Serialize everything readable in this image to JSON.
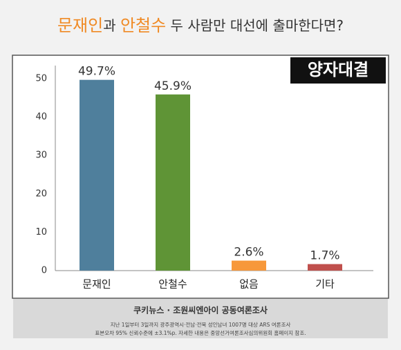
{
  "chart_data": {
    "type": "bar",
    "title_segments": [
      {
        "text": "문재인",
        "color": "#f08a24"
      },
      {
        "text": "과 ",
        "color": "#333333"
      },
      {
        "text": "안철수",
        "color": "#f08a24"
      },
      {
        "text": " 두 사람만 대선에 출마한다면?",
        "color": "#333333"
      }
    ],
    "badge": "양자대결",
    "categories": [
      "문재인",
      "안철수",
      "없음",
      "기타"
    ],
    "values": [
      49.7,
      45.9,
      2.6,
      1.7
    ],
    "value_labels": [
      "49.7%",
      "45.9%",
      "2.6%",
      "1.7%"
    ],
    "colors": [
      "#4f7f9c",
      "#5f9436",
      "#f7983a",
      "#c0504d"
    ],
    "ylim": [
      0,
      50
    ],
    "yticks": [
      0,
      10,
      20,
      30,
      40,
      50
    ],
    "source": "쿠키뉴스 · 조원씨엔아이 공동여론조사",
    "notes": [
      "지난 1일부터 3일까지 광주광역시·전남·전북 성인남녀 1007명 대상 ARS 여론조사",
      "표본오차 95% 신뢰수준에 ±3.1%p. 자세한 내용은 중앙선거여론조사심의위원회 홈페이지 참조."
    ]
  }
}
